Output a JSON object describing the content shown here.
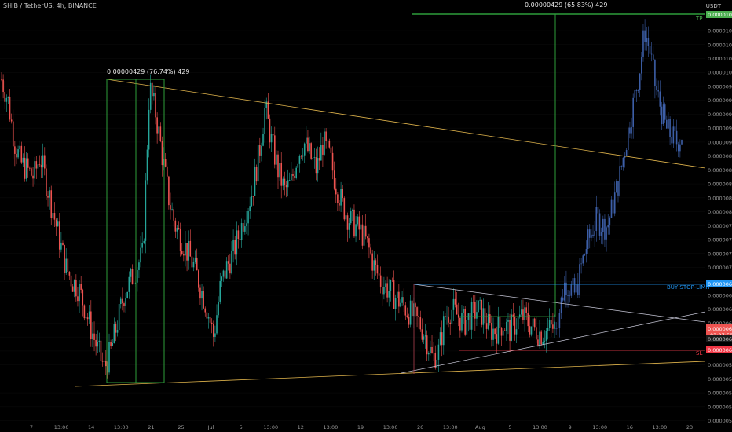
{
  "header": {
    "title": "SHIB / TetherUS, 4h, BINANCE",
    "currency": "USDT"
  },
  "annotations": {
    "measure_left": "0.00000429 (76.74%) 429",
    "measure_right": "0.00000429 (65.83%) 429",
    "tp_label": "TP",
    "buy_label": "BUY STOP-LIMIT",
    "sl_label": "SL"
  },
  "price_badges": {
    "tp": "0.00001079",
    "buy": "0.00000699",
    "current": "0.00000634",
    "countdown": "03:27:50",
    "current_low": "0.00000620",
    "sl": "0.00000604"
  },
  "colors": {
    "background": "#000000",
    "bull_candle": "#26a69a",
    "bear_candle": "#ef5350",
    "projection": "#3d5fa8",
    "wedge_line": "#e0b44c",
    "triangle_line": "#c8c8d8",
    "tp_line": "#4caf50",
    "buy_line": "#2196f3",
    "sl_line": "#f23645",
    "measure_box": "#2e9e3a"
  },
  "chart_data": {
    "type": "candlestick",
    "symbol": "SHIB / TetherUS",
    "interval": "4h",
    "exchange": "BINANCE",
    "ylim": [
      4.95e-06,
      1.095e-05
    ],
    "y_ticks": [
      "0.00001060",
      "0.00001040",
      "0.00001020",
      "0.00001000",
      "0.00000980",
      "0.00000960",
      "0.00000940",
      "0.00000920",
      "0.00000900",
      "0.00000880",
      "0.00000860",
      "0.00000840",
      "0.00000820",
      "0.00000800",
      "0.00000780",
      "0.00000760",
      "0.00000740",
      "0.00000720",
      "0.00000700",
      "0.00000680",
      "0.00000660",
      "0.00000640",
      "0.00000620",
      "0.00000600",
      "0.00000580",
      "0.00000560",
      "0.00000540",
      "0.00000520",
      "0.00000500"
    ],
    "x_ticks": [
      "7",
      "13:00",
      "14",
      "13:00",
      "21",
      "25",
      "Jul",
      "5",
      "13:00",
      "12",
      "13:00",
      "19",
      "13:00",
      "26",
      "13:00",
      "Aug",
      "5",
      "13:00",
      "9",
      "13:00",
      "16",
      "13:00",
      "23"
    ],
    "series": [
      {
        "name": "",
        "values": [
          9.9e-06,
          9.6e-06,
          9e-06,
          8.7e-06,
          8.6e-06,
          8.5e-06,
          8.8e-06,
          8.4e-06,
          8e-06,
          7.6e-06,
          7.2e-06,
          7e-06,
          6.9e-06,
          6.6e-06,
          6.3e-06,
          6e-06,
          5.75e-06,
          6e-06,
          6.4e-06,
          6.8e-06,
          7e-06,
          7.2e-06,
          7.4e-06,
          9.8e-06,
          9.4e-06,
          8.8e-06,
          8.2e-06,
          7.8e-06,
          7.6e-06,
          7.4e-06,
          7.2e-06,
          6.9e-06,
          6.6e-06,
          6.2e-06,
          6.9e-06,
          7.2e-06,
          7.4e-06,
          7.7e-06,
          8e-06,
          8.3e-06,
          8.8e-06,
          9.5e-06,
          9e-06,
          8.6e-06,
          8.3e-06,
          8.4e-06,
          8.8e-06,
          9e-06,
          8.8e-06,
          8.6e-06,
          9e-06,
          8.8e-06,
          8.4e-06,
          8.1e-06,
          7.9e-06,
          7.8e-06,
          7.7e-06,
          7.5e-06,
          7.2e-06,
          7e-06,
          6.9e-06,
          6.8e-06,
          6.7e-06,
          6.6e-06,
          6.5e-06,
          6.4e-06,
          6.2e-06,
          5.9e-06,
          6e-06,
          6.5e-06,
          6.6e-06,
          6.5e-06,
          6.4e-06,
          6.5e-06,
          6.6e-06,
          6.5e-06,
          6.3e-06,
          6.3e-06,
          6.4e-06,
          6.3e-06,
          6.4e-06,
          6.5e-06,
          6.4e-06,
          6.3e-06,
          6.25e-06,
          6.3e-06,
          6.34e-06
        ]
      },
      {
        "name": "",
        "values": [
          6.34e-06,
          6.6e-06,
          7e-06,
          6.9e-06,
          6.8e-06,
          7.2e-06,
          7.5e-06,
          7.7e-06,
          7.9e-06,
          7.8e-06,
          7.8e-06,
          8.1e-06,
          8.4e-06,
          8.8e-06,
          9.2e-06,
          9.6e-06,
          1e-05,
          1.06e-05,
          1.03e-05,
          9.8e-06,
          9.5e-06,
          9.2e-06,
          9.1e-06,
          9e-06,
          9.1e-06
        ]
      }
    ]
  }
}
